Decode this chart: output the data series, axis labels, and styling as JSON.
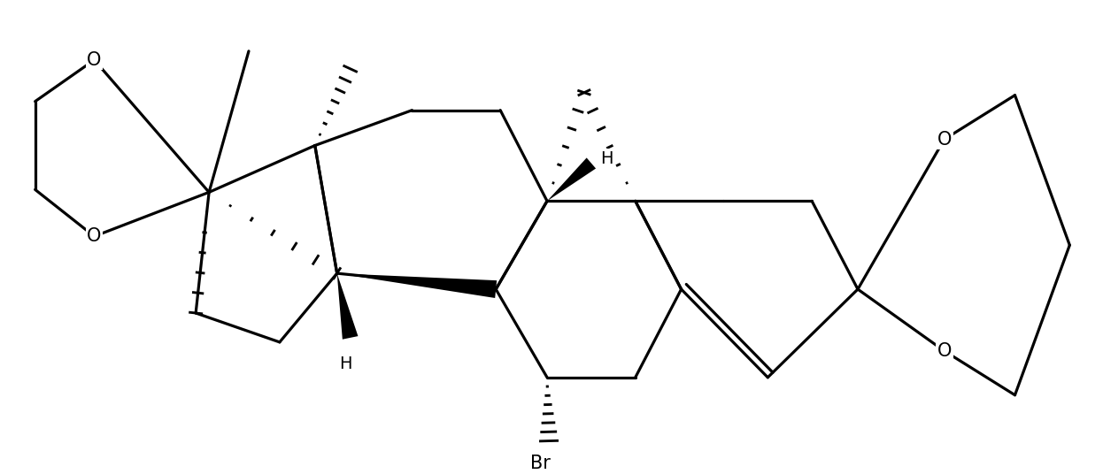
{
  "bg": "#ffffff",
  "lc": "#000000",
  "lw": 2.3,
  "fs": 15,
  "figsize": [
    12.46,
    5.36
  ],
  "dpi": 100,
  "xlim": [
    0,
    12.46
  ],
  "ylim": [
    0,
    5.36
  ]
}
